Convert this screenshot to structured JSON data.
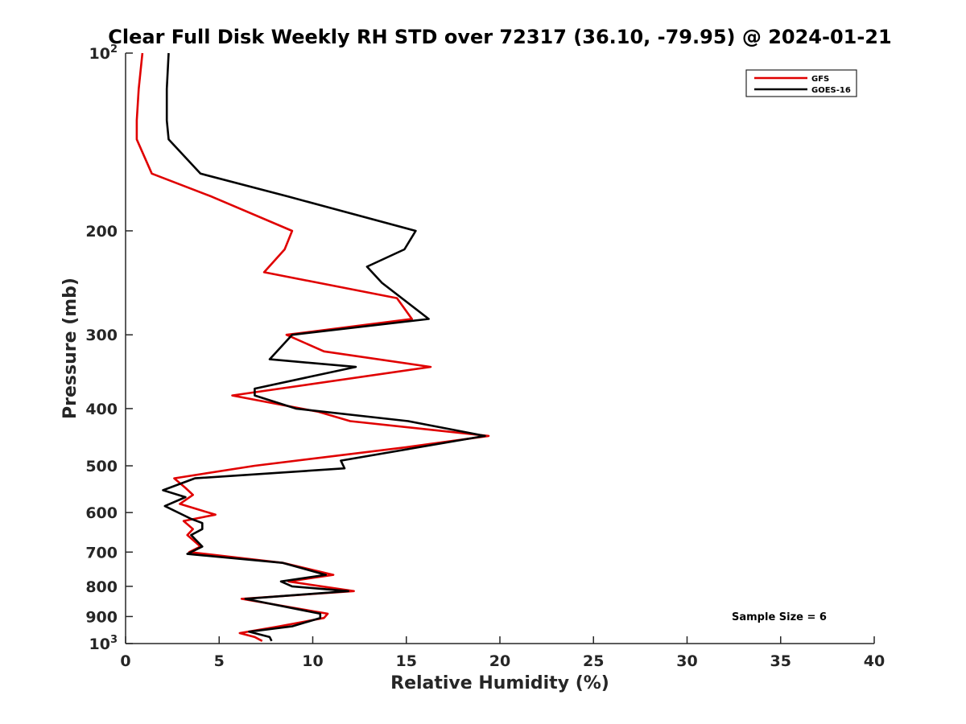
{
  "chart_data": {
    "type": "line",
    "title": "Clear Full Disk Weekly RH STD over 72317 (36.10, -79.95) @ 2024-01-21",
    "xlabel": "Relative Humidity (%)",
    "ylabel": "Pressure (mb)",
    "xlim": [
      0,
      40
    ],
    "ylim": [
      100,
      1000
    ],
    "y_scale": "log",
    "y_reversed": true,
    "x_ticks": [
      "0",
      "5",
      "10",
      "15",
      "20",
      "25",
      "30",
      "35",
      "40"
    ],
    "y_ticks": [
      {
        "value": 100,
        "label": "10",
        "exp": "2"
      },
      {
        "value": 200,
        "label": "200"
      },
      {
        "value": 300,
        "label": "300"
      },
      {
        "value": 400,
        "label": "400"
      },
      {
        "value": 500,
        "label": "500"
      },
      {
        "value": 600,
        "label": "600"
      },
      {
        "value": 700,
        "label": "700"
      },
      {
        "value": 800,
        "label": "800"
      },
      {
        "value": 900,
        "label": "900"
      },
      {
        "value": 1000,
        "label": "10",
        "exp": "3"
      }
    ],
    "grid": false,
    "legend": "top-right",
    "annotation": "Sample Size = 6",
    "series": [
      {
        "name": "GFS",
        "color": "#e00000",
        "points": [
          [
            0.9,
            100
          ],
          [
            0.7,
            115
          ],
          [
            0.6,
            130
          ],
          [
            0.6,
            140
          ],
          [
            1.4,
            160
          ],
          [
            4.6,
            175
          ],
          [
            8.9,
            200
          ],
          [
            8.5,
            215
          ],
          [
            7.4,
            235
          ],
          [
            14.5,
            260
          ],
          [
            15.3,
            282
          ],
          [
            8.6,
            300
          ],
          [
            10.6,
            320
          ],
          [
            16.3,
            340
          ],
          [
            5.7,
            380
          ],
          [
            10.3,
            405
          ],
          [
            12.0,
            420
          ],
          [
            19.4,
            445
          ],
          [
            15.0,
            465
          ],
          [
            6.9,
            500
          ],
          [
            2.6,
            525
          ],
          [
            3.2,
            545
          ],
          [
            3.6,
            560
          ],
          [
            2.9,
            580
          ],
          [
            4.8,
            605
          ],
          [
            3.1,
            620
          ],
          [
            3.6,
            640
          ],
          [
            3.3,
            655
          ],
          [
            4.0,
            685
          ],
          [
            3.4,
            700
          ],
          [
            8.4,
            730
          ],
          [
            11.1,
            765
          ],
          [
            8.7,
            785
          ],
          [
            12.2,
            815
          ],
          [
            6.2,
            840
          ],
          [
            10.8,
            890
          ],
          [
            10.6,
            905
          ],
          [
            8.2,
            935
          ],
          [
            6.1,
            960
          ],
          [
            6.9,
            975
          ],
          [
            7.3,
            990
          ]
        ]
      },
      {
        "name": "GOES-16",
        "color": "#000000",
        "points": [
          [
            2.3,
            100
          ],
          [
            2.2,
            115
          ],
          [
            2.2,
            130
          ],
          [
            2.3,
            140
          ],
          [
            4.0,
            160
          ],
          [
            8.7,
            175
          ],
          [
            15.5,
            200
          ],
          [
            14.9,
            215
          ],
          [
            12.9,
            230
          ],
          [
            13.7,
            245
          ],
          [
            16.2,
            282
          ],
          [
            8.9,
            300
          ],
          [
            7.7,
            330
          ],
          [
            12.3,
            340
          ],
          [
            6.9,
            370
          ],
          [
            6.9,
            380
          ],
          [
            9.1,
            400
          ],
          [
            15.1,
            420
          ],
          [
            19.2,
            445
          ],
          [
            11.5,
            490
          ],
          [
            11.7,
            505
          ],
          [
            3.7,
            525
          ],
          [
            2.0,
            550
          ],
          [
            3.2,
            565
          ],
          [
            2.1,
            585
          ],
          [
            3.5,
            615
          ],
          [
            4.1,
            625
          ],
          [
            4.1,
            640
          ],
          [
            3.5,
            655
          ],
          [
            4.1,
            685
          ],
          [
            3.3,
            705
          ],
          [
            8.4,
            730
          ],
          [
            10.7,
            765
          ],
          [
            8.3,
            785
          ],
          [
            8.9,
            800
          ],
          [
            11.9,
            815
          ],
          [
            6.4,
            840
          ],
          [
            10.4,
            890
          ],
          [
            10.4,
            905
          ],
          [
            8.9,
            935
          ],
          [
            6.6,
            955
          ],
          [
            7.7,
            975
          ],
          [
            7.8,
            990
          ]
        ]
      }
    ]
  }
}
